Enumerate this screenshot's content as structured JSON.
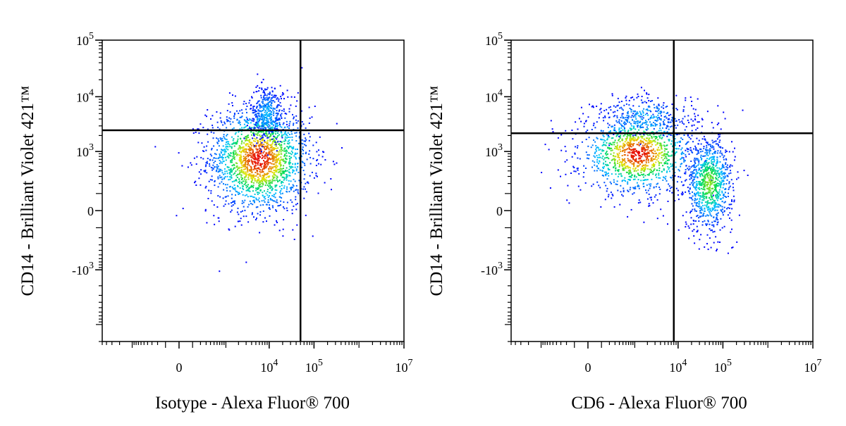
{
  "chart_data": [
    {
      "type": "scatter",
      "title": "",
      "xlabel": "Isotype - Alexa Fluor® 700",
      "ylabel": "CD14 - Brilliant Violet 421™",
      "xscale": "biexponential",
      "yscale": "biexponential",
      "xlim": [
        -5000,
        10000000
      ],
      "ylim": [
        -20000,
        100000
      ],
      "grid": false,
      "legend": "none",
      "x_ticks": [
        {
          "value": 0,
          "base": "0",
          "exp": ""
        },
        {
          "value": 10000,
          "base": "10",
          "exp": "4"
        },
        {
          "value": 100000,
          "base": "10",
          "exp": "5"
        },
        {
          "value": 10000000,
          "base": "10",
          "exp": "7"
        }
      ],
      "y_ticks": [
        {
          "value": 100000,
          "base": "10",
          "exp": "5"
        },
        {
          "value": 10000,
          "base": "10",
          "exp": "4"
        },
        {
          "value": 1000,
          "base": "10",
          "exp": "3"
        },
        {
          "value": 0,
          "base": "0",
          "exp": ""
        },
        {
          "value": -1000,
          "base": "-10",
          "exp": "3"
        }
      ],
      "quadrant_gate": {
        "x": 50000,
        "y": 2500
      },
      "populations": [
        {
          "x_center": 6000,
          "y_center": 700,
          "x_spread": 6000,
          "y_spread": 900,
          "n": 1900,
          "density": "high"
        },
        {
          "x_center": 9000,
          "y_center": 5000,
          "x_spread": 6000,
          "y_spread": 4000,
          "n": 350,
          "density": "low"
        }
      ]
    },
    {
      "type": "scatter",
      "title": "",
      "xlabel": "CD6 - Alexa Fluor® 700",
      "ylabel": "CD14 - Brilliant Violet 421™",
      "xscale": "biexponential",
      "yscale": "biexponential",
      "xlim": [
        -5000,
        10000000
      ],
      "ylim": [
        -20000,
        100000
      ],
      "grid": false,
      "legend": "none",
      "x_ticks": [
        {
          "value": 0,
          "base": "0",
          "exp": ""
        },
        {
          "value": 10000,
          "base": "10",
          "exp": "4"
        },
        {
          "value": 100000,
          "base": "10",
          "exp": "5"
        },
        {
          "value": 10000000,
          "base": "10",
          "exp": "7"
        }
      ],
      "y_ticks": [
        {
          "value": 100000,
          "base": "10",
          "exp": "5"
        },
        {
          "value": 10000,
          "base": "10",
          "exp": "4"
        },
        {
          "value": 1000,
          "base": "10",
          "exp": "3"
        },
        {
          "value": 0,
          "base": "0",
          "exp": ""
        },
        {
          "value": -1000,
          "base": "-10",
          "exp": "3"
        }
      ],
      "quadrant_gate": {
        "x": 8000,
        "y": 2200
      },
      "populations": [
        {
          "x_center": 1200,
          "y_center": 900,
          "x_spread": 1800,
          "y_spread": 900,
          "n": 1300,
          "density": "high"
        },
        {
          "x_center": 1800,
          "y_center": 4500,
          "x_spread": 2000,
          "y_spread": 3000,
          "n": 250,
          "density": "low"
        },
        {
          "x_center": 50000,
          "y_center": 200,
          "x_spread": 40000,
          "y_spread": 500,
          "n": 900,
          "density": "medium"
        }
      ]
    }
  ]
}
